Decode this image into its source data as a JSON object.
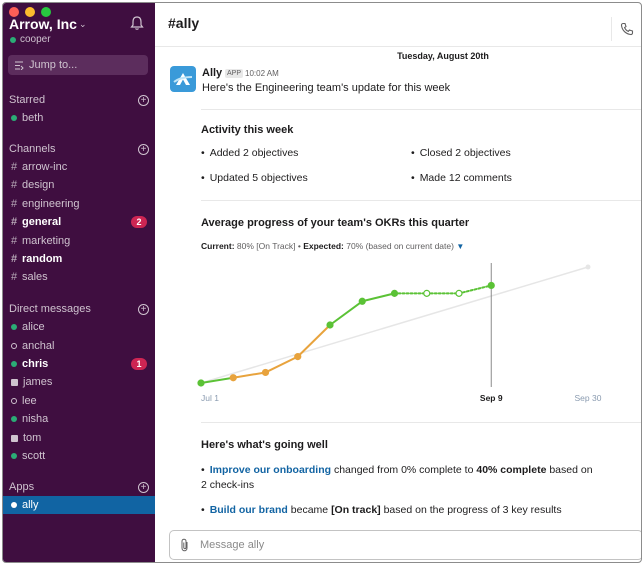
{
  "window": {
    "team_name": "Arrow, Inc",
    "user_name": "cooper"
  },
  "sidebar": {
    "jump_label": "Jump to...",
    "starred": {
      "title": "Starred",
      "items": [
        {
          "label": "beth",
          "status": "online"
        }
      ]
    },
    "channels": {
      "title": "Channels",
      "items": [
        {
          "label": "arrow-inc",
          "bold": false,
          "badge": ""
        },
        {
          "label": "design",
          "bold": false,
          "badge": ""
        },
        {
          "label": "engineering",
          "bold": false,
          "badge": ""
        },
        {
          "label": "general",
          "bold": true,
          "badge": "2"
        },
        {
          "label": "marketing",
          "bold": false,
          "badge": ""
        },
        {
          "label": "random",
          "bold": true,
          "badge": ""
        },
        {
          "label": "sales",
          "bold": false,
          "badge": ""
        }
      ]
    },
    "direct_messages": {
      "title": "Direct messages",
      "items": [
        {
          "label": "alice",
          "status": "online",
          "bold": false,
          "badge": ""
        },
        {
          "label": "anchal",
          "status": "away",
          "bold": false,
          "badge": ""
        },
        {
          "label": "chris",
          "status": "online",
          "bold": true,
          "badge": "1"
        },
        {
          "label": "james",
          "status": "group",
          "bold": false,
          "badge": ""
        },
        {
          "label": "lee",
          "status": "away",
          "bold": false,
          "badge": ""
        },
        {
          "label": "nisha",
          "status": "online",
          "bold": false,
          "badge": ""
        },
        {
          "label": "tom",
          "status": "group",
          "bold": false,
          "badge": ""
        },
        {
          "label": "scott",
          "status": "online",
          "bold": false,
          "badge": ""
        }
      ]
    },
    "apps": {
      "title": "Apps",
      "items": [
        {
          "label": "ally",
          "active": true
        }
      ]
    }
  },
  "channel": {
    "title": "#ally",
    "date_divider": "Tuesday, August 20th"
  },
  "message": {
    "author": "Ally",
    "app_tag": "APP",
    "time": "10:02 AM",
    "text": "Here's the Engineering team's update for this week",
    "activity": {
      "title": "Activity this week",
      "items": [
        "Added 2 objectives",
        "Closed 2 objectives",
        "Updated 5 objectives",
        "Made 12 comments"
      ]
    },
    "progress": {
      "title": "Average progress of your team's OKRs this quarter",
      "current_label": "Current:",
      "current_value": "80% [On Track]",
      "expected_label": "Expected:",
      "expected_value": "70% (based on current date)"
    },
    "going_well": {
      "title": "Here's what's going well",
      "items": [
        {
          "link": "Improve our onboarding",
          "text1": " changed from 0% complete to ",
          "strong": "40% complete",
          "text2": " based on 2 check-ins"
        },
        {
          "link": "Build our brand",
          "text1": " became ",
          "strong": "[On track]",
          "text2": " based on the progress of 3 key results"
        }
      ]
    }
  },
  "composer": {
    "placeholder": "Message ally"
  },
  "colors": {
    "sidebar_bg": "#3f0e40",
    "active_item": "#1164a3",
    "badge": "#cd2553",
    "link": "#1264a3",
    "progress_green": "#5bc236",
    "progress_orange": "#e8a33d",
    "expected_line": "#e6e6e6"
  },
  "chart_data": {
    "type": "line",
    "x_tick_labels": [
      "Jul 1",
      "Sep 9",
      "Sep 30"
    ],
    "current_marker": "Sep 9",
    "series": [
      {
        "points": [
          {
            "x": 0,
            "y": 0
          },
          {
            "x": 1,
            "y": 2
          },
          {
            "x": 2,
            "y": 4
          },
          {
            "x": 3,
            "y": 10
          },
          {
            "x": 4,
            "y": 22
          },
          {
            "x": 5,
            "y": 31
          },
          {
            "x": 6,
            "y": 34
          },
          {
            "x": 7,
            "y": 34
          },
          {
            "x": 8,
            "y": 34
          },
          {
            "x": 9,
            "y": 37
          }
        ]
      },
      {
        "points": [
          {
            "x": 0,
            "y": 0
          },
          {
            "x": 12,
            "y": 44
          }
        ]
      }
    ],
    "x_range": [
      0,
      12
    ],
    "y_range": [
      0,
      44
    ],
    "marker_x": 9
  }
}
